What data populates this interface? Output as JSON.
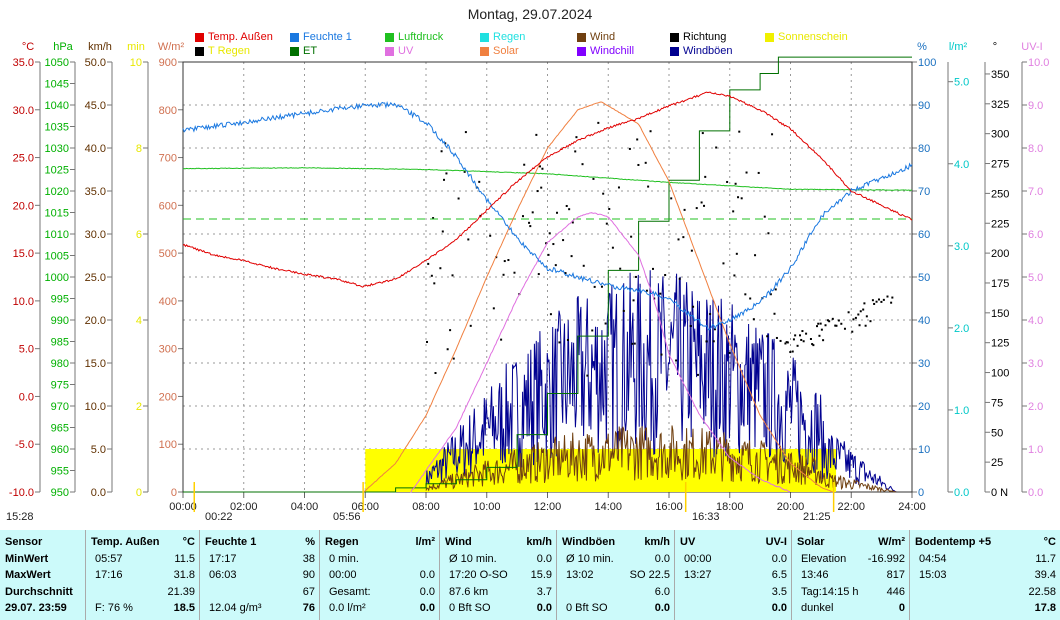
{
  "title": "Montag, 29.07.2024",
  "legend": [
    {
      "label": "Temp. Außen",
      "color": "#e00000"
    },
    {
      "label": "Feuchte 1",
      "color": "#1a78e0"
    },
    {
      "label": "Luftdruck",
      "color": "#20c020"
    },
    {
      "label": "Regen",
      "color": "#20e0e0"
    },
    {
      "label": "Wind",
      "color": "#704010"
    },
    {
      "label": "Richtung",
      "color": "#000000"
    },
    {
      "label": "Sonnenschein",
      "color": "#f0f000"
    },
    {
      "label": "T Regen",
      "color": "#000000"
    },
    {
      "label": "ET",
      "color": "#007000"
    },
    {
      "label": "UV",
      "color": "#e070e0"
    },
    {
      "label": "Solar",
      "color": "#f08040"
    },
    {
      "label": "Windchill",
      "color": "#8000ff"
    },
    {
      "label": "Windböen",
      "color": "#000090"
    }
  ],
  "axes_left": [
    {
      "unit": "°C",
      "color": "#c00000",
      "ticks": [
        "35.0",
        "30.0",
        "25.0",
        "20.0",
        "15.0",
        "10.0",
        "5.0",
        "0.0",
        "-5.0",
        "-10.0"
      ]
    },
    {
      "unit": "hPa",
      "color": "#00b000",
      "ticks": [
        "1050",
        "1045",
        "1040",
        "1035",
        "1030",
        "1025",
        "1020",
        "1015",
        "1010",
        "1005",
        "1000",
        "995",
        "990",
        "985",
        "980",
        "975",
        "970",
        "965",
        "960",
        "955",
        "950"
      ]
    },
    {
      "unit": "km/h",
      "color": "#603000",
      "ticks": [
        "50.0",
        "45.0",
        "40.0",
        "35.0",
        "30.0",
        "25.0",
        "20.0",
        "15.0",
        "10.0",
        "5.0",
        "0.0"
      ]
    },
    {
      "unit": "min",
      "color": "#e8e800",
      "ticks": [
        "10",
        "8",
        "6",
        "4",
        "2",
        "0"
      ]
    },
    {
      "unit": "W/m²",
      "color": "#d07050",
      "ticks": [
        "900",
        "800",
        "700",
        "600",
        "500",
        "400",
        "300",
        "200",
        "100",
        "0"
      ]
    }
  ],
  "axes_right": [
    {
      "unit": "%",
      "color": "#1a70c0",
      "ticks": [
        "100",
        "90",
        "80",
        "70",
        "60",
        "50",
        "40",
        "30",
        "20",
        "10",
        "0"
      ]
    },
    {
      "unit": "l/m²",
      "color": "#00c8c8",
      "ticks": [
        "5.0",
        "4.0",
        "3.0",
        "2.0",
        "1.0",
        "0.0"
      ]
    },
    {
      "unit": "°",
      "color": "#000000",
      "ticks": [
        "350",
        "325",
        "300",
        "275",
        "250",
        "225",
        "200",
        "175",
        "150",
        "125",
        "100",
        "75",
        "50",
        "25",
        "0 N"
      ]
    },
    {
      "unit": "UV-I",
      "color": "#e080e0",
      "ticks": [
        "10.0",
        "9.0",
        "8.0",
        "7.0",
        "6.0",
        "5.0",
        "4.0",
        "3.0",
        "2.0",
        "1.0",
        "0.0"
      ]
    }
  ],
  "markers": [
    {
      "text": "15:28"
    },
    {
      "text": "00:22"
    },
    {
      "text": "05:56"
    },
    {
      "text": "16:33"
    },
    {
      "text": "21:25"
    }
  ],
  "chart_data": {
    "type": "line",
    "title": "Montag, 29.07.2024",
    "xlabel": "",
    "x_ticks": [
      "00:00",
      "02:00",
      "04:00",
      "06:00",
      "08:00",
      "10:00",
      "12:00",
      "14:00",
      "16:00",
      "18:00",
      "20:00",
      "22:00",
      "24:00"
    ],
    "xlim": [
      0,
      24
    ],
    "series": [
      {
        "name": "Temp. Außen",
        "unit": "°C",
        "ylim": [
          -10,
          35
        ],
        "x": [
          0,
          1,
          2,
          3,
          4,
          5,
          5.95,
          7,
          8,
          9,
          10,
          11,
          12,
          13,
          14,
          15,
          16,
          17.27,
          18,
          19,
          20,
          21,
          22,
          23,
          24
        ],
        "y": [
          15.9,
          14.8,
          14.2,
          13.4,
          12.8,
          12.3,
          11.5,
          12.3,
          14.2,
          16.4,
          19.5,
          22.5,
          25.1,
          26.8,
          28.1,
          29.1,
          30.4,
          31.8,
          31.4,
          30.0,
          28.0,
          25.0,
          21.5,
          20.0,
          18.5
        ]
      },
      {
        "name": "Feuchte 1",
        "unit": "%",
        "ylim": [
          0,
          100
        ],
        "x": [
          0,
          1,
          2,
          3,
          4,
          5,
          6.05,
          7,
          8,
          9,
          10,
          11,
          12,
          13,
          14,
          15,
          16,
          17.28,
          18,
          19,
          20,
          21,
          22,
          23,
          24
        ],
        "y": [
          84,
          85,
          86,
          87,
          88,
          89,
          90,
          90,
          86,
          78,
          68,
          59,
          52,
          50,
          48,
          47,
          45,
          38,
          40,
          44,
          52,
          64,
          70,
          73,
          76
        ]
      },
      {
        "name": "Luftdruck",
        "unit": "hPa",
        "ylim": [
          950,
          1050
        ],
        "x": [
          0,
          4,
          8,
          12,
          16,
          20,
          24
        ],
        "y": [
          1025.2,
          1025.4,
          1025.0,
          1024.0,
          1022.0,
          1020.4,
          1020.2
        ]
      },
      {
        "name": "Solar",
        "unit": "W/m²",
        "ylim": [
          0,
          900
        ],
        "x": [
          5.95,
          7,
          8,
          9,
          10,
          11,
          12,
          13,
          13.77,
          15,
          16,
          17,
          18,
          19,
          20,
          21,
          21.4
        ],
        "y": [
          0,
          60,
          160,
          300,
          450,
          590,
          720,
          800,
          817,
          770,
          650,
          480,
          310,
          160,
          60,
          10,
          0
        ]
      },
      {
        "name": "UV",
        "unit": "UV-I",
        "ylim": [
          0,
          10
        ],
        "x": [
          7.5,
          8,
          9,
          10,
          11,
          12,
          13,
          13.45,
          14,
          15,
          15.5,
          16,
          17,
          18,
          19,
          20
        ],
        "y": [
          0,
          0.5,
          1.5,
          3.0,
          4.5,
          5.8,
          6.4,
          6.5,
          6.4,
          5.5,
          4.5,
          3.2,
          1.8,
          0.8,
          0.3,
          0
        ]
      },
      {
        "name": "ET",
        "unit": "l/m²",
        "ylim": [
          0,
          5.24
        ],
        "x": [
          0,
          7,
          8,
          9,
          10,
          11,
          12,
          13,
          14,
          15,
          16,
          17,
          18,
          19,
          19.6,
          24
        ],
        "y": [
          0,
          0.05,
          0.1,
          0.15,
          0.3,
          0.7,
          1.2,
          1.9,
          2.7,
          3.3,
          3.8,
          4.4,
          4.9,
          5.1,
          5.3,
          5.3
        ]
      },
      {
        "name": "Sonnenschein",
        "unit": "min",
        "ylim": [
          0,
          10
        ],
        "x_start": 6,
        "x_end": 21.5,
        "value": 1.0
      },
      {
        "name": "Wind",
        "unit": "km/h",
        "ylim": [
          0,
          50
        ],
        "mean": 3.7,
        "max": 15.9
      },
      {
        "name": "Windböen",
        "unit": "km/h",
        "ylim": [
          0,
          50
        ],
        "mean": 6.0,
        "max": 22.5
      },
      {
        "name": "Richtung",
        "unit": "°",
        "ylim": [
          0,
          360
        ]
      },
      {
        "name": "Luftdruck Referenz",
        "unit": "hPa",
        "value": 1013.5
      }
    ],
    "grid": true
  },
  "table": [
    {
      "head": [
        "Sensor",
        ""
      ],
      "rows": [
        [
          "MinWert",
          ""
        ],
        [
          "MaxWert",
          ""
        ],
        [
          "Durchschnitt",
          ""
        ],
        [
          "29.07. 23:59",
          ""
        ]
      ],
      "boldcol0": true
    },
    {
      "head": [
        "Temp. Außen",
        "°C"
      ],
      "rows": [
        [
          "05:57",
          "11.5"
        ],
        [
          "17:16",
          "31.8"
        ],
        [
          "",
          "21.39"
        ],
        [
          "F: 76 %",
          "18.5"
        ]
      ]
    },
    {
      "head": [
        "Feuchte 1",
        "%"
      ],
      "rows": [
        [
          "17:17",
          "38"
        ],
        [
          "06:03",
          "90"
        ],
        [
          "",
          "67"
        ],
        [
          "12.04 g/m³",
          "76"
        ]
      ]
    },
    {
      "head": [
        "Regen",
        "l/m²"
      ],
      "rows": [
        [
          "0 min.",
          ""
        ],
        [
          "00:00",
          "0.0"
        ],
        [
          "Gesamt:",
          "0.0"
        ],
        [
          "0.0 l/m²",
          "0.0"
        ]
      ]
    },
    {
      "head": [
        "Wind",
        "km/h"
      ],
      "rows": [
        [
          "Ø 10 min.",
          "0.0"
        ],
        [
          "17:20   O-SO",
          "15.9"
        ],
        [
          "87.6 km",
          "3.7"
        ],
        [
          "0 Bft SO",
          "0.0"
        ]
      ]
    },
    {
      "head": [
        "Windböen",
        "km/h"
      ],
      "rows": [
        [
          "Ø 10 min.",
          "0.0"
        ],
        [
          "13:02",
          "SO 22.5"
        ],
        [
          "",
          "6.0"
        ],
        [
          "0 Bft SO",
          "0.0"
        ]
      ]
    },
    {
      "head": [
        "UV",
        "UV-I"
      ],
      "rows": [
        [
          "00:00",
          "0.0"
        ],
        [
          "13:27",
          "6.5"
        ],
        [
          "",
          "3.5"
        ],
        [
          "",
          "0.0"
        ]
      ]
    },
    {
      "head": [
        "Solar",
        "W/m²"
      ],
      "rows": [
        [
          "Elevation",
          "-16.992"
        ],
        [
          "13:46",
          "817"
        ],
        [
          "Tag:14:15 h",
          "446"
        ],
        [
          "dunkel",
          "0"
        ]
      ]
    },
    {
      "head": [
        "Bodentemp +5",
        "°C"
      ],
      "rows": [
        [
          "04:54",
          "11.7"
        ],
        [
          "15:03",
          "39.4"
        ],
        [
          "",
          "22.58"
        ],
        [
          "",
          "17.8"
        ]
      ]
    }
  ]
}
